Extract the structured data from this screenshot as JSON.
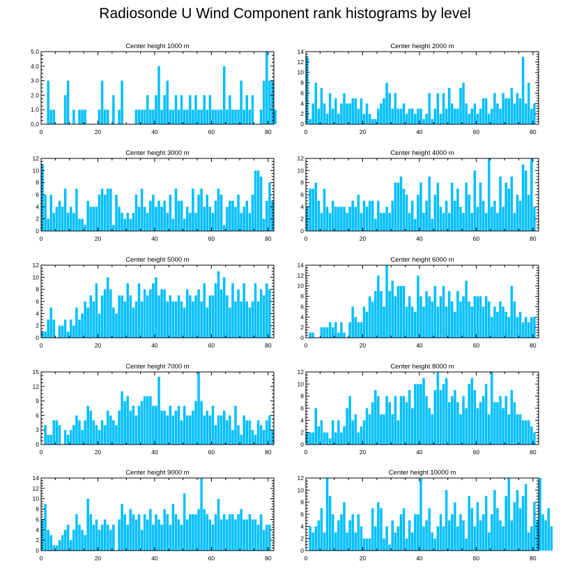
{
  "figure": {
    "title": "Radiosonde U Wind Component rank histograms by level"
  },
  "chart_data": [
    {
      "type": "bar",
      "title": "Center height 1000 m",
      "xlim": [
        0,
        82
      ],
      "ylim": [
        0,
        5
      ],
      "xticks": [
        0,
        20,
        40,
        60,
        80
      ],
      "yticks": [
        0,
        1,
        2,
        3,
        4,
        5
      ],
      "ytick_labels": [
        "0.0",
        "1.0",
        "2.0",
        "3.0",
        "4.0",
        "5.0"
      ],
      "values": [
        0,
        0,
        3,
        1,
        1,
        0,
        0,
        0,
        2,
        3,
        0,
        1,
        0,
        1,
        1,
        1,
        0,
        0,
        0,
        0,
        1,
        3,
        1,
        1,
        0,
        2,
        0,
        1,
        3,
        0,
        0,
        0,
        0,
        1,
        1,
        1,
        1,
        2,
        1,
        1,
        2,
        4,
        1,
        2,
        3,
        1,
        1,
        2,
        1,
        2,
        1,
        1,
        2,
        1,
        2,
        1,
        1,
        2,
        1,
        2,
        1,
        1,
        1,
        1,
        4,
        1,
        2,
        1,
        1,
        1,
        3,
        1,
        2,
        1,
        2,
        0,
        0,
        1,
        3,
        5,
        3,
        3,
        1
      ]
    },
    {
      "type": "bar",
      "title": "Center height 2000 m",
      "xlim": [
        0,
        82
      ],
      "ylim": [
        0,
        14
      ],
      "xticks": [
        0,
        20,
        40,
        60,
        80
      ],
      "yticks": [
        0,
        2,
        4,
        6,
        8,
        10,
        12,
        14
      ],
      "ytick_labels": [
        "0",
        "2",
        "4",
        "6",
        "8",
        "10",
        "12",
        "14"
      ],
      "values": [
        13,
        1,
        4,
        8,
        3,
        7,
        4,
        2,
        6,
        3,
        5,
        2,
        4,
        6,
        4,
        4,
        5,
        5,
        3,
        5,
        2,
        4,
        2,
        1,
        1,
        3,
        4,
        5,
        8,
        6,
        3,
        6,
        3,
        3,
        4,
        2,
        3,
        3,
        2,
        3,
        3,
        1,
        2,
        6,
        1,
        3,
        6,
        2,
        6,
        3,
        7,
        4,
        3,
        3,
        7,
        8,
        4,
        2,
        3,
        4,
        2,
        3,
        5,
        5,
        2,
        3,
        6,
        4,
        3,
        6,
        5,
        5,
        7,
        4,
        6,
        5,
        13,
        4,
        8,
        3,
        4
      ]
    },
    {
      "type": "bar",
      "title": "Center height 3000 m",
      "xlim": [
        0,
        82
      ],
      "ylim": [
        0,
        12
      ],
      "xticks": [
        0,
        20,
        40,
        60,
        80
      ],
      "yticks": [
        0,
        2,
        4,
        6,
        8,
        10,
        12
      ],
      "ytick_labels": [
        "0",
        "2",
        "4",
        "6",
        "8",
        "10",
        "12"
      ],
      "values": [
        11,
        6,
        2,
        6,
        3,
        4,
        5,
        4,
        7,
        3,
        4,
        3,
        7,
        2,
        2,
        1,
        5,
        4,
        4,
        4,
        6,
        7,
        6,
        7,
        7,
        1,
        6,
        4,
        3,
        2,
        3,
        2,
        3,
        6,
        4,
        7,
        4,
        3,
        5,
        6,
        4,
        5,
        4,
        5,
        3,
        6,
        2,
        7,
        5,
        5,
        2,
        4,
        3,
        7,
        3,
        6,
        7,
        4,
        6,
        4,
        3,
        5,
        7,
        6,
        1,
        4,
        5,
        5,
        4,
        6,
        3,
        4,
        5,
        3,
        6,
        10,
        10,
        9,
        2,
        5,
        8,
        5
      ]
    },
    {
      "type": "bar",
      "title": "Center height 4000 m",
      "xlim": [
        0,
        82
      ],
      "ylim": [
        0,
        12
      ],
      "xticks": [
        0,
        20,
        40,
        60,
        80
      ],
      "yticks": [
        0,
        2,
        4,
        6,
        8,
        10,
        12
      ],
      "ytick_labels": [
        "0",
        "2",
        "4",
        "6",
        "8",
        "10",
        "12"
      ],
      "values": [
        4,
        7,
        7,
        8,
        5,
        3,
        7,
        4,
        3,
        5,
        4,
        4,
        4,
        4,
        3,
        4,
        5,
        4,
        6,
        3,
        5,
        4,
        5,
        5,
        2,
        5,
        3,
        3,
        4,
        3,
        5,
        8,
        8,
        9,
        7,
        6,
        3,
        5,
        2,
        6,
        8,
        3,
        5,
        9,
        2,
        6,
        8,
        4,
        3,
        5,
        3,
        8,
        5,
        7,
        4,
        3,
        8,
        6,
        3,
        10,
        4,
        8,
        5,
        3,
        12,
        4,
        5,
        3,
        9,
        4,
        8,
        7,
        9,
        3,
        6,
        5,
        11,
        10,
        6,
        12,
        4
      ]
    },
    {
      "type": "bar",
      "title": "Center height 5000 m",
      "xlim": [
        0,
        82
      ],
      "ylim": [
        0,
        12
      ],
      "xticks": [
        0,
        20,
        40,
        60,
        80
      ],
      "yticks": [
        0,
        2,
        4,
        6,
        8,
        10,
        12
      ],
      "ytick_labels": [
        "0",
        "2",
        "4",
        "6",
        "8",
        "10",
        "12"
      ],
      "values": [
        1,
        1,
        3,
        5,
        3,
        0,
        2,
        2,
        3,
        1,
        3,
        2,
        5,
        3,
        4,
        6,
        5,
        7,
        6,
        9,
        4,
        7,
        8,
        10,
        8,
        5,
        4,
        7,
        7,
        6,
        9,
        7,
        5,
        6,
        9,
        6,
        8,
        7,
        8,
        9,
        10,
        7,
        8,
        8,
        6,
        7,
        6,
        6,
        7,
        6,
        5,
        8,
        7,
        6,
        7,
        8,
        6,
        9,
        5,
        7,
        7,
        9,
        11,
        8,
        10,
        7,
        5,
        9,
        6,
        8,
        6,
        9,
        6,
        5,
        6,
        9,
        6,
        8,
        7,
        9,
        8
      ]
    },
    {
      "type": "bar",
      "title": "Center height 6000 m",
      "xlim": [
        0,
        82
      ],
      "ylim": [
        0,
        14
      ],
      "xticks": [
        0,
        20,
        40,
        60,
        80
      ],
      "yticks": [
        0,
        2,
        4,
        6,
        8,
        10,
        12,
        14
      ],
      "ytick_labels": [
        "0",
        "2",
        "4",
        "6",
        "8",
        "10",
        "12",
        "14"
      ],
      "values": [
        0,
        1,
        1,
        0,
        0,
        2,
        2,
        2,
        3,
        2,
        3,
        1,
        3,
        1,
        0,
        3,
        6,
        4,
        3,
        3,
        6,
        5,
        8,
        7,
        9,
        12,
        9,
        6,
        14,
        9,
        11,
        8,
        10,
        10,
        10,
        6,
        8,
        6,
        5,
        12,
        8,
        6,
        9,
        8,
        7,
        10,
        6,
        8,
        10,
        6,
        9,
        7,
        5,
        9,
        7,
        8,
        11,
        7,
        6,
        8,
        8,
        8,
        6,
        8,
        7,
        4,
        6,
        5,
        7,
        6,
        5,
        4,
        10,
        7,
        4,
        5,
        3,
        4,
        3,
        4,
        4
      ]
    },
    {
      "type": "bar",
      "title": "Center height 7000 m",
      "xlim": [
        0,
        82
      ],
      "ylim": [
        0,
        15
      ],
      "xticks": [
        0,
        20,
        40,
        60,
        80
      ],
      "yticks": [
        0,
        3,
        6,
        9,
        12,
        15
      ],
      "ytick_labels": [
        "0",
        "3",
        "6",
        "9",
        "12",
        "15"
      ],
      "values": [
        0,
        4,
        2,
        2,
        5,
        5,
        4,
        0,
        3,
        2,
        3,
        4,
        6,
        5,
        3,
        5,
        8,
        7,
        5,
        4,
        3,
        5,
        4,
        7,
        6,
        5,
        4,
        7,
        11,
        9,
        10,
        7,
        8,
        6,
        8,
        9,
        10,
        10,
        10,
        8,
        8,
        14,
        7,
        7,
        6,
        8,
        6,
        7,
        8,
        5,
        8,
        6,
        6,
        7,
        9,
        15,
        9,
        6,
        7,
        6,
        8,
        4,
        6,
        6,
        7,
        5,
        6,
        3,
        8,
        4,
        2,
        6,
        5,
        5,
        3,
        2,
        5,
        4,
        3,
        5,
        6,
        3
      ]
    },
    {
      "type": "bar",
      "title": "Center height 8000 m",
      "xlim": [
        0,
        82
      ],
      "ylim": [
        0,
        12
      ],
      "xticks": [
        0,
        20,
        40,
        60,
        80
      ],
      "yticks": [
        0,
        2,
        4,
        6,
        8,
        10,
        12
      ],
      "ytick_labels": [
        "0",
        "2",
        "4",
        "6",
        "8",
        "10",
        "12"
      ],
      "values": [
        2,
        2,
        2,
        6,
        3,
        4,
        2,
        2,
        1,
        4,
        2,
        4,
        2,
        3,
        6,
        8,
        4,
        5,
        2,
        3,
        4,
        6,
        5,
        7,
        9,
        8,
        5,
        5,
        8,
        7,
        5,
        8,
        4,
        8,
        8,
        7,
        9,
        6,
        10,
        10,
        10,
        11,
        8,
        6,
        5,
        9,
        12,
        9,
        10,
        11,
        7,
        8,
        9,
        7,
        5,
        8,
        6,
        10,
        11,
        9,
        6,
        7,
        8,
        10,
        5,
        12,
        7,
        7,
        8,
        6,
        8,
        5,
        9,
        7,
        5,
        5,
        4,
        4,
        4,
        3,
        2
      ]
    },
    {
      "type": "bar",
      "title": "Center height 9000 m",
      "xlim": [
        0,
        82
      ],
      "ylim": [
        0,
        14
      ],
      "xticks": [
        0,
        20,
        40,
        60,
        80
      ],
      "yticks": [
        0,
        2,
        4,
        6,
        8,
        10,
        12,
        14
      ],
      "ytick_labels": [
        "0",
        "2",
        "4",
        "6",
        "8",
        "10",
        "12",
        "14"
      ],
      "values": [
        6,
        9,
        4,
        3,
        1,
        1,
        2,
        3,
        4,
        5,
        2,
        4,
        7,
        5,
        4,
        3,
        10,
        7,
        5,
        6,
        4,
        5,
        6,
        5,
        4,
        5,
        0,
        6,
        9,
        7,
        5,
        8,
        7,
        6,
        7,
        4,
        7,
        6,
        8,
        5,
        7,
        6,
        5,
        8,
        7,
        5,
        9,
        7,
        6,
        5,
        11,
        6,
        7,
        7,
        7,
        8,
        14,
        8,
        7,
        6,
        5,
        7,
        10,
        6,
        7,
        6,
        7,
        7,
        6,
        7,
        8,
        6,
        6,
        7,
        6,
        6,
        5,
        7,
        4,
        5,
        5
      ]
    },
    {
      "type": "bar",
      "title": "Center height 10000 m",
      "xlim": [
        0,
        82
      ],
      "ylim": [
        0,
        12
      ],
      "xticks": [
        0,
        20,
        40,
        60,
        80
      ],
      "yticks": [
        0,
        2,
        4,
        6,
        8,
        10,
        12
      ],
      "ytick_labels": [
        "0",
        "2",
        "4",
        "6",
        "8",
        "10",
        "12"
      ],
      "values": [
        0,
        4,
        3,
        4,
        5,
        7,
        3,
        12,
        9,
        6,
        3,
        5,
        6,
        8,
        3,
        5,
        6,
        3,
        6,
        4,
        2,
        2,
        2,
        7,
        4,
        8,
        7,
        2,
        4,
        1,
        5,
        3,
        4,
        6,
        7,
        2,
        5,
        3,
        6,
        6,
        12,
        4,
        5,
        7,
        3,
        2,
        4,
        6,
        4,
        10,
        5,
        6,
        8,
        4,
        6,
        5,
        2,
        9,
        7,
        4,
        8,
        5,
        6,
        9,
        3,
        6,
        10,
        7,
        5,
        4,
        9,
        12,
        5,
        8,
        10,
        7,
        9,
        11,
        3,
        4,
        8,
        5,
        12,
        6,
        5,
        7,
        4
      ]
    }
  ]
}
